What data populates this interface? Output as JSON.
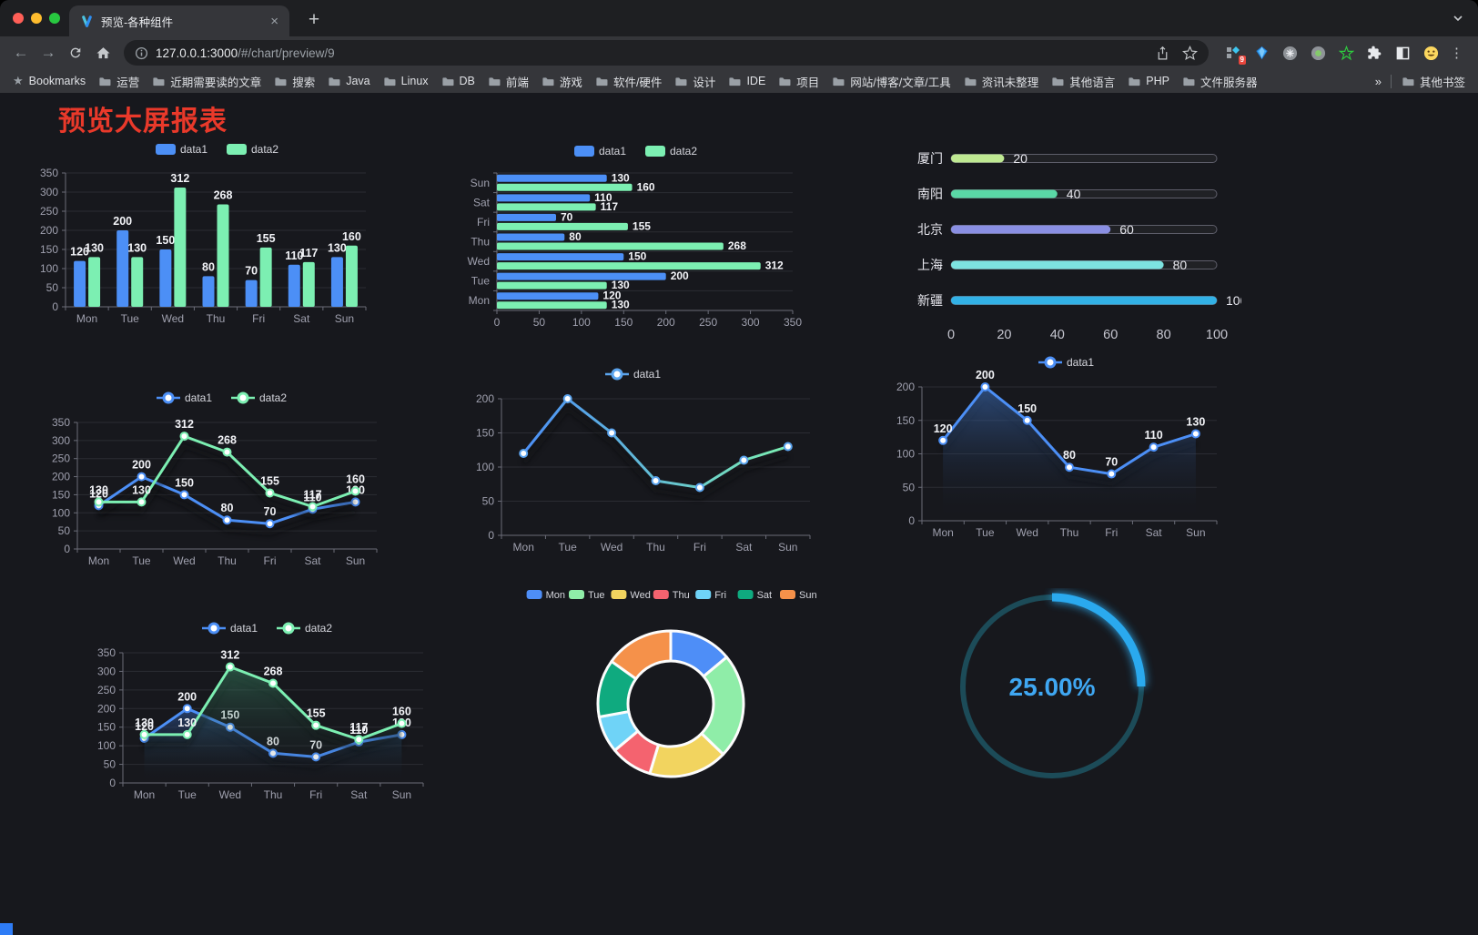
{
  "browser": {
    "tab_title": "预览-各种组件",
    "url_host": "127.0.0.1:3000",
    "url_path": "/#/chart/preview/9",
    "extension_badge": "9",
    "icons": {
      "close": "×",
      "new_tab": "+",
      "back": "←",
      "forward": "→",
      "menu": "⋮",
      "bookmarks_star": "★",
      "overflow": "»"
    },
    "bookmarks": {
      "manager": "Bookmarks",
      "folders": [
        "运营",
        "近期需要读的文章",
        "搜索",
        "Java",
        "Linux",
        "DB",
        "前端",
        "游戏",
        "软件/硬件",
        "设计",
        "IDE",
        "项目",
        "网站/博客/文章/工具",
        "资讯未整理",
        "其他语言",
        "PHP",
        "文件服务器"
      ],
      "other": "其他书签"
    }
  },
  "page": {
    "title": "预览大屏报表",
    "title_color": "#E9392A"
  },
  "chart_data": [
    {
      "id": "bar-vertical",
      "type": "bar",
      "legend_position": "top",
      "grid": true,
      "categories": [
        "Mon",
        "Tue",
        "Wed",
        "Thu",
        "Fri",
        "Sat",
        "Sun"
      ],
      "series": [
        {
          "name": "data1",
          "color": "#4C8FF6",
          "values": [
            120,
            200,
            150,
            80,
            70,
            110,
            130
          ]
        },
        {
          "name": "data2",
          "color": "#7CEFB2",
          "values": [
            130,
            130,
            312,
            268,
            155,
            117,
            160
          ]
        }
      ],
      "ylim": [
        0,
        350
      ],
      "ytick": 50,
      "value_labels": true
    },
    {
      "id": "bar-horizontal",
      "type": "bar",
      "orientation": "horizontal",
      "legend_position": "top",
      "categories": [
        "Mon",
        "Tue",
        "Wed",
        "Thu",
        "Fri",
        "Sat",
        "Sun"
      ],
      "series": [
        {
          "name": "data1",
          "color": "#4C8FF6",
          "values": [
            120,
            200,
            150,
            80,
            70,
            110,
            130
          ]
        },
        {
          "name": "data2",
          "color": "#7CEFB2",
          "values": [
            130,
            130,
            312,
            268,
            155,
            117,
            160
          ]
        }
      ],
      "xlim": [
        0,
        350
      ],
      "xtick": 50,
      "value_labels": true
    },
    {
      "id": "progress",
      "type": "bar",
      "orientation": "horizontal",
      "style": "progress-pills",
      "rows": [
        {
          "label": "厦门",
          "value": 20,
          "color": "#BFE992"
        },
        {
          "label": "南阳",
          "value": 40,
          "color": "#5AD8A6"
        },
        {
          "label": "北京",
          "value": 60,
          "color": "#8A8FE3"
        },
        {
          "label": "上海",
          "value": 80,
          "color": "#7DE3E1"
        },
        {
          "label": "新疆",
          "value": 100,
          "color": "#32B1E6"
        }
      ],
      "xlim": [
        0,
        100
      ],
      "xticks": [
        0,
        20,
        40,
        60,
        80,
        100
      ]
    },
    {
      "id": "line-two",
      "type": "line",
      "legend_position": "top",
      "categories": [
        "Mon",
        "Tue",
        "Wed",
        "Thu",
        "Fri",
        "Sat",
        "Sun"
      ],
      "series": [
        {
          "name": "data1",
          "color": "#4C8FF6",
          "values": [
            120,
            200,
            150,
            80,
            70,
            110,
            130
          ]
        },
        {
          "name": "data2",
          "color": "#7CEFB2",
          "values": [
            130,
            130,
            312,
            268,
            155,
            117,
            160
          ]
        }
      ],
      "ylim": [
        0,
        350
      ],
      "ytick": 50,
      "value_labels": true,
      "markers": true
    },
    {
      "id": "line-gradient",
      "type": "line",
      "legend_position": "top",
      "categories": [
        "Mon",
        "Tue",
        "Wed",
        "Thu",
        "Fri",
        "Sat",
        "Sun"
      ],
      "series": [
        {
          "name": "data1",
          "gradient": [
            "#4C8FF6",
            "#7CEFB2"
          ],
          "values": [
            120,
            200,
            150,
            80,
            70,
            110,
            130
          ]
        }
      ],
      "ylim": [
        0,
        200
      ],
      "ytick": 50,
      "value_labels": false,
      "markers": true
    },
    {
      "id": "line-area",
      "type": "area",
      "legend_position": "top",
      "categories": [
        "Mon",
        "Tue",
        "Wed",
        "Thu",
        "Fri",
        "Sat",
        "Sun"
      ],
      "series": [
        {
          "name": "data1",
          "color": "#4C8FF6",
          "area_from": "rgba(64,118,200,0.55)",
          "area_to": "rgba(18,22,30,0)",
          "values": [
            120,
            200,
            150,
            80,
            70,
            110,
            130
          ]
        }
      ],
      "ylim": [
        0,
        200
      ],
      "ytick": 50,
      "value_labels": true,
      "markers": true
    },
    {
      "id": "line-area-two",
      "type": "area",
      "legend_position": "top",
      "categories": [
        "Mon",
        "Tue",
        "Wed",
        "Thu",
        "Fri",
        "Sat",
        "Sun"
      ],
      "series": [
        {
          "name": "data1",
          "color": "#4C8FF6",
          "area_from": "rgba(58,105,185,0.5)",
          "area_to": "rgba(18,22,30,0)",
          "values": [
            120,
            200,
            150,
            80,
            70,
            110,
            130
          ]
        },
        {
          "name": "data2",
          "color": "#7CEFB2",
          "area_from": "rgba(64,150,112,0.45)",
          "area_to": "rgba(18,22,30,0)",
          "values": [
            130,
            130,
            312,
            268,
            155,
            117,
            160
          ]
        }
      ],
      "ylim": [
        0,
        350
      ],
      "ytick": 50,
      "value_labels": true,
      "markers": true
    },
    {
      "id": "donut",
      "type": "pie",
      "donut": true,
      "legend_position": "top",
      "items": [
        {
          "label": "Mon",
          "value": 120,
          "color": "#4E8EF7"
        },
        {
          "label": "Tue",
          "value": 200,
          "color": "#8FEDA8"
        },
        {
          "label": "Wed",
          "value": 150,
          "color": "#F2D45F"
        },
        {
          "label": "Thu",
          "value": 80,
          "color": "#F4636F"
        },
        {
          "label": "Fri",
          "value": 70,
          "color": "#6FD3F7"
        },
        {
          "label": "Sat",
          "value": 110,
          "color": "#0FAA7F"
        },
        {
          "label": "Sun",
          "value": 130,
          "color": "#F5914A"
        }
      ]
    },
    {
      "id": "gauge",
      "type": "gauge",
      "percent": 25,
      "value_label": "25.00%",
      "color": "#2AA9EE",
      "track_color": "#1C4B58",
      "text_color": "#3FA7F2"
    }
  ]
}
